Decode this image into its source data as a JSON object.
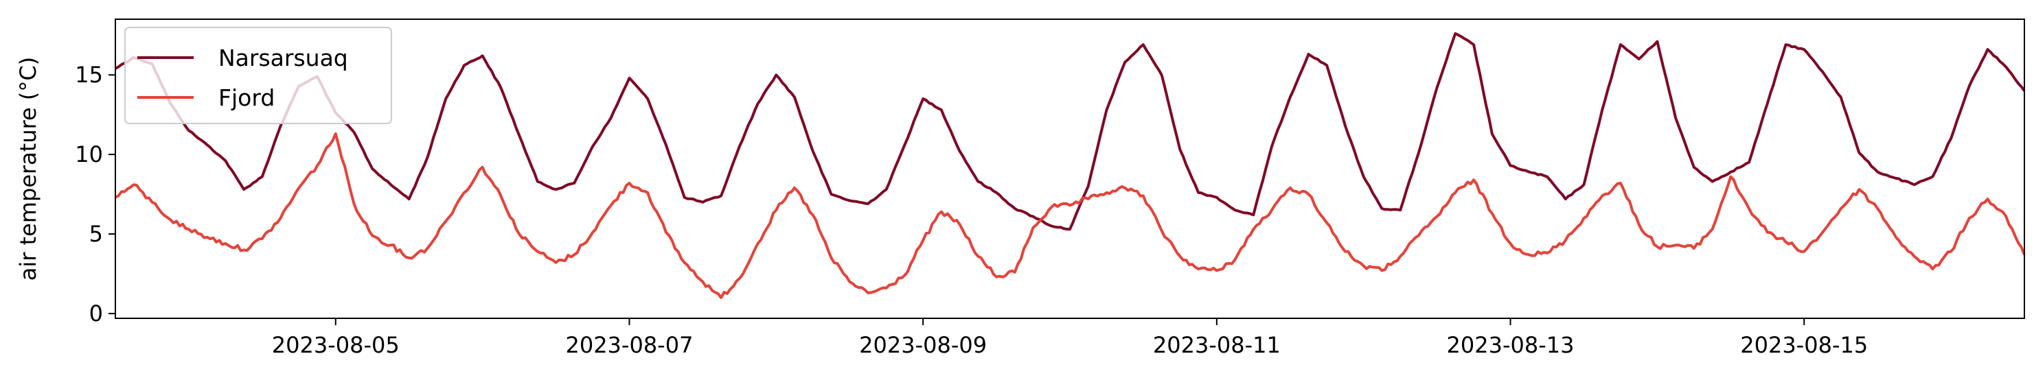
{
  "chart_data": {
    "type": "line",
    "title": "",
    "xlabel": "",
    "ylabel": "air temperature (°C)",
    "xlim": [
      "2023-08-03T12:00",
      "2023-08-16T12:00"
    ],
    "ylim": [
      -0.3,
      18.5
    ],
    "xticks": [
      "2023-08-05",
      "2023-08-07",
      "2023-08-09",
      "2023-08-11",
      "2023-08-13",
      "2023-08-15"
    ],
    "yticks": [
      0,
      5,
      10,
      15
    ],
    "grid": false,
    "legend": "upper left",
    "series": [
      {
        "name": "Narsarsuaq",
        "color": "#7f0a25",
        "points": [
          [
            "2023-08-03T12:00",
            15.4
          ],
          [
            "2023-08-03T15:00",
            16.1
          ],
          [
            "2023-08-03T18:00",
            15.7
          ],
          [
            "2023-08-03T21:00",
            13.2
          ],
          [
            "2023-08-04T00:00",
            11.5
          ],
          [
            "2023-08-04T03:00",
            10.6
          ],
          [
            "2023-08-04T06:00",
            9.6
          ],
          [
            "2023-08-04T09:00",
            7.8
          ],
          [
            "2023-08-04T12:00",
            8.6
          ],
          [
            "2023-08-04T15:00",
            11.8
          ],
          [
            "2023-08-04T18:00",
            14.3
          ],
          [
            "2023-08-04T21:00",
            14.9
          ],
          [
            "2023-08-05T00:00",
            12.6
          ],
          [
            "2023-08-05T03:00",
            11.4
          ],
          [
            "2023-08-05T06:00",
            9.1
          ],
          [
            "2023-08-05T09:00",
            8.1
          ],
          [
            "2023-08-05T12:00",
            7.2
          ],
          [
            "2023-08-05T15:00",
            9.8
          ],
          [
            "2023-08-05T18:00",
            13.5
          ],
          [
            "2023-08-05T21:00",
            15.6
          ],
          [
            "2023-08-06T00:00",
            16.2
          ],
          [
            "2023-08-06T03:00",
            14.2
          ],
          [
            "2023-08-06T06:00",
            11.2
          ],
          [
            "2023-08-06T09:00",
            8.3
          ],
          [
            "2023-08-06T12:00",
            7.8
          ],
          [
            "2023-08-06T15:00",
            8.2
          ],
          [
            "2023-08-06T18:00",
            10.5
          ],
          [
            "2023-08-06T21:00",
            12.3
          ],
          [
            "2023-08-07T00:00",
            14.8
          ],
          [
            "2023-08-07T03:00",
            13.5
          ],
          [
            "2023-08-07T06:00",
            10.6
          ],
          [
            "2023-08-07T09:00",
            7.3
          ],
          [
            "2023-08-07T12:00",
            7.0
          ],
          [
            "2023-08-07T15:00",
            7.4
          ],
          [
            "2023-08-07T18:00",
            10.5
          ],
          [
            "2023-08-07T21:00",
            13.2
          ],
          [
            "2023-08-08T00:00",
            15.0
          ],
          [
            "2023-08-08T03:00",
            13.6
          ],
          [
            "2023-08-08T06:00",
            10.2
          ],
          [
            "2023-08-08T09:00",
            7.5
          ],
          [
            "2023-08-08T12:00",
            7.1
          ],
          [
            "2023-08-08T15:00",
            6.9
          ],
          [
            "2023-08-08T18:00",
            7.8
          ],
          [
            "2023-08-08T21:00",
            10.6
          ],
          [
            "2023-08-09T00:00",
            13.5
          ],
          [
            "2023-08-09T03:00",
            12.8
          ],
          [
            "2023-08-09T06:00",
            10.2
          ],
          [
            "2023-08-09T09:00",
            8.3
          ],
          [
            "2023-08-09T12:00",
            7.6
          ],
          [
            "2023-08-09T15:00",
            6.6
          ],
          [
            "2023-08-09T18:00",
            6.1
          ],
          [
            "2023-08-09T21:00",
            5.5
          ],
          [
            "2023-08-10T00:00",
            5.3
          ],
          [
            "2023-08-10T03:00",
            8.0
          ],
          [
            "2023-08-10T06:00",
            12.8
          ],
          [
            "2023-08-10T09:00",
            15.8
          ],
          [
            "2023-08-10T12:00",
            16.9
          ],
          [
            "2023-08-10T15:00",
            15.0
          ],
          [
            "2023-08-10T18:00",
            10.3
          ],
          [
            "2023-08-10T21:00",
            7.6
          ],
          [
            "2023-08-11T00:00",
            7.3
          ],
          [
            "2023-08-11T03:00",
            6.5
          ],
          [
            "2023-08-11T06:00",
            6.2
          ],
          [
            "2023-08-11T09:00",
            10.5
          ],
          [
            "2023-08-11T12:00",
            13.6
          ],
          [
            "2023-08-11T15:00",
            16.3
          ],
          [
            "2023-08-11T18:00",
            15.6
          ],
          [
            "2023-08-11T21:00",
            11.8
          ],
          [
            "2023-08-12T00:00",
            8.6
          ],
          [
            "2023-08-12T03:00",
            6.6
          ],
          [
            "2023-08-12T06:00",
            6.5
          ],
          [
            "2023-08-12T09:00",
            10.1
          ],
          [
            "2023-08-12T12:00",
            14.2
          ],
          [
            "2023-08-12T15:00",
            17.6
          ],
          [
            "2023-08-12T18:00",
            16.9
          ],
          [
            "2023-08-12T21:00",
            11.3
          ],
          [
            "2023-08-13T00:00",
            9.3
          ],
          [
            "2023-08-13T03:00",
            8.9
          ],
          [
            "2023-08-13T06:00",
            8.6
          ],
          [
            "2023-08-13T09:00",
            7.2
          ],
          [
            "2023-08-13T12:00",
            8.1
          ],
          [
            "2023-08-13T15:00",
            12.8
          ],
          [
            "2023-08-13T18:00",
            16.9
          ],
          [
            "2023-08-13T21:00",
            16.0
          ],
          [
            "2023-08-14T00:00",
            17.1
          ],
          [
            "2023-08-14T03:00",
            12.3
          ],
          [
            "2023-08-14T06:00",
            9.2
          ],
          [
            "2023-08-14T09:00",
            8.3
          ],
          [
            "2023-08-14T12:00",
            8.9
          ],
          [
            "2023-08-14T15:00",
            9.5
          ],
          [
            "2023-08-14T18:00",
            13.2
          ],
          [
            "2023-08-14T21:00",
            16.9
          ],
          [
            "2023-08-15T00:00",
            16.6
          ],
          [
            "2023-08-15T03:00",
            15.2
          ],
          [
            "2023-08-15T06:00",
            13.6
          ],
          [
            "2023-08-15T09:00",
            10.1
          ],
          [
            "2023-08-15T12:00",
            8.9
          ],
          [
            "2023-08-15T15:00",
            8.5
          ],
          [
            "2023-08-15T18:00",
            8.1
          ],
          [
            "2023-08-15T21:00",
            8.6
          ],
          [
            "2023-08-16T00:00",
            11.0
          ],
          [
            "2023-08-16T03:00",
            14.3
          ],
          [
            "2023-08-16T06:00",
            16.6
          ],
          [
            "2023-08-16T09:00",
            15.5
          ],
          [
            "2023-08-16T12:00",
            14.0
          ]
        ]
      },
      {
        "name": "Fjord",
        "color": "#e5433a",
        "points": [
          [
            "2023-08-03T12:00",
            7.3
          ],
          [
            "2023-08-03T15:00",
            8.1
          ],
          [
            "2023-08-03T18:00",
            7.0
          ],
          [
            "2023-08-03T21:00",
            5.9
          ],
          [
            "2023-08-04T00:00",
            5.3
          ],
          [
            "2023-08-04T03:00",
            4.8
          ],
          [
            "2023-08-04T06:00",
            4.4
          ],
          [
            "2023-08-04T09:00",
            4.0
          ],
          [
            "2023-08-04T12:00",
            4.7
          ],
          [
            "2023-08-04T15:00",
            6.0
          ],
          [
            "2023-08-04T18:00",
            7.9
          ],
          [
            "2023-08-04T21:00",
            9.3
          ],
          [
            "2023-08-05T00:00",
            11.3
          ],
          [
            "2023-08-05T03:00",
            6.9
          ],
          [
            "2023-08-05T06:00",
            4.9
          ],
          [
            "2023-08-05T09:00",
            4.3
          ],
          [
            "2023-08-05T12:00",
            3.5
          ],
          [
            "2023-08-05T15:00",
            4.1
          ],
          [
            "2023-08-05T18:00",
            5.8
          ],
          [
            "2023-08-05T21:00",
            7.6
          ],
          [
            "2023-08-06T00:00",
            9.2
          ],
          [
            "2023-08-06T03:00",
            7.4
          ],
          [
            "2023-08-06T06:00",
            5.0
          ],
          [
            "2023-08-06T09:00",
            3.9
          ],
          [
            "2023-08-06T12:00",
            3.2
          ],
          [
            "2023-08-06T15:00",
            3.7
          ],
          [
            "2023-08-06T18:00",
            5.1
          ],
          [
            "2023-08-06T21:00",
            6.8
          ],
          [
            "2023-08-07T00:00",
            8.2
          ],
          [
            "2023-08-07T03:00",
            7.6
          ],
          [
            "2023-08-07T06:00",
            5.1
          ],
          [
            "2023-08-07T09:00",
            3.2
          ],
          [
            "2023-08-07T12:00",
            2.0
          ],
          [
            "2023-08-07T15:00",
            1.0
          ],
          [
            "2023-08-07T18:00",
            2.2
          ],
          [
            "2023-08-07T21:00",
            4.4
          ],
          [
            "2023-08-08T00:00",
            6.5
          ],
          [
            "2023-08-08T03:00",
            7.9
          ],
          [
            "2023-08-08T06:00",
            6.2
          ],
          [
            "2023-08-08T09:00",
            3.5
          ],
          [
            "2023-08-08T12:00",
            2.0
          ],
          [
            "2023-08-08T15:00",
            1.3
          ],
          [
            "2023-08-08T18:00",
            1.6
          ],
          [
            "2023-08-08T21:00",
            2.4
          ],
          [
            "2023-08-09T00:00",
            4.6
          ],
          [
            "2023-08-09T03:00",
            6.4
          ],
          [
            "2023-08-09T06:00",
            5.6
          ],
          [
            "2023-08-09T09:00",
            3.6
          ],
          [
            "2023-08-09T12:00",
            2.3
          ],
          [
            "2023-08-09T15:00",
            2.6
          ],
          [
            "2023-08-09T18:00",
            5.4
          ],
          [
            "2023-08-09T21:00",
            6.7
          ],
          [
            "2023-08-10T00:00",
            6.8
          ],
          [
            "2023-08-10T03:00",
            7.2
          ],
          [
            "2023-08-10T06:00",
            7.6
          ],
          [
            "2023-08-10T09:00",
            7.9
          ],
          [
            "2023-08-10T12:00",
            7.4
          ],
          [
            "2023-08-10T15:00",
            5.2
          ],
          [
            "2023-08-10T18:00",
            3.6
          ],
          [
            "2023-08-10T21:00",
            2.8
          ],
          [
            "2023-08-11T00:00",
            2.7
          ],
          [
            "2023-08-11T03:00",
            3.4
          ],
          [
            "2023-08-11T06:00",
            5.3
          ],
          [
            "2023-08-11T09:00",
            6.5
          ],
          [
            "2023-08-11T12:00",
            7.9
          ],
          [
            "2023-08-11T15:00",
            7.5
          ],
          [
            "2023-08-11T18:00",
            5.7
          ],
          [
            "2023-08-11T21:00",
            3.9
          ],
          [
            "2023-08-12T00:00",
            3.0
          ],
          [
            "2023-08-12T03:00",
            2.7
          ],
          [
            "2023-08-12T06:00",
            3.6
          ],
          [
            "2023-08-12T09:00",
            4.9
          ],
          [
            "2023-08-12T12:00",
            6.1
          ],
          [
            "2023-08-12T15:00",
            7.6
          ],
          [
            "2023-08-12T18:00",
            8.4
          ],
          [
            "2023-08-12T21:00",
            6.3
          ],
          [
            "2023-08-13T00:00",
            4.4
          ],
          [
            "2023-08-13T03:00",
            3.7
          ],
          [
            "2023-08-13T06:00",
            3.8
          ],
          [
            "2023-08-13T09:00",
            4.6
          ],
          [
            "2023-08-13T12:00",
            6.0
          ],
          [
            "2023-08-13T15:00",
            7.4
          ],
          [
            "2023-08-13T18:00",
            8.2
          ],
          [
            "2023-08-13T21:00",
            5.6
          ],
          [
            "2023-08-14T00:00",
            4.2
          ],
          [
            "2023-08-14T03:00",
            4.3
          ],
          [
            "2023-08-14T06:00",
            4.1
          ],
          [
            "2023-08-14T09:00",
            5.3
          ],
          [
            "2023-08-14T12:00",
            8.6
          ],
          [
            "2023-08-14T15:00",
            6.6
          ],
          [
            "2023-08-14T18:00",
            5.1
          ],
          [
            "2023-08-14T21:00",
            4.5
          ],
          [
            "2023-08-15T00:00",
            3.9
          ],
          [
            "2023-08-15T03:00",
            5.1
          ],
          [
            "2023-08-15T06:00",
            6.6
          ],
          [
            "2023-08-15T09:00",
            7.8
          ],
          [
            "2023-08-15T12:00",
            6.6
          ],
          [
            "2023-08-15T15:00",
            4.8
          ],
          [
            "2023-08-15T18:00",
            3.6
          ],
          [
            "2023-08-15T21:00",
            2.8
          ],
          [
            "2023-08-16T00:00",
            3.9
          ],
          [
            "2023-08-16T03:00",
            6.0
          ],
          [
            "2023-08-16T06:00",
            7.2
          ],
          [
            "2023-08-16T09:00",
            6.1
          ],
          [
            "2023-08-16T12:00",
            3.7
          ]
        ]
      }
    ]
  }
}
